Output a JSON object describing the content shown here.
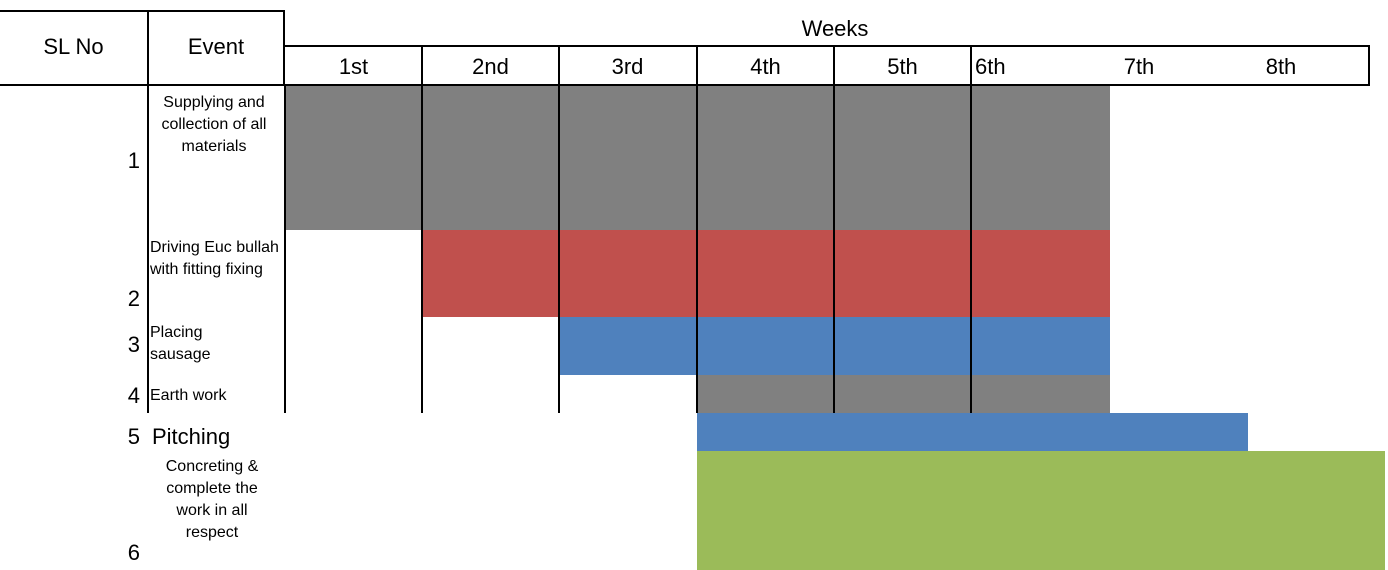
{
  "header": {
    "sl_no": "SL No",
    "event": "Event",
    "weeks": "Weeks",
    "week_labels": [
      "1st",
      "2nd",
      "3rd",
      "4th",
      "5th",
      "6th",
      "7th",
      "8th"
    ]
  },
  "rows": [
    {
      "sl": "1",
      "event": "Supplying and collection of all materials",
      "start_week": 1,
      "end_week": 6,
      "color": "#808080"
    },
    {
      "sl": "2",
      "event": "Driving Euc bullah  with fitting fixing",
      "start_week": 2,
      "end_week": 6,
      "color": "#c0504d"
    },
    {
      "sl": "3",
      "event": "Placing sausage",
      "start_week": 3,
      "end_week": 6,
      "color": "#4f81bd"
    },
    {
      "sl": "4",
      "event": "Earth work",
      "start_week": 4,
      "end_week": 6,
      "color": "#808080"
    },
    {
      "sl": "5",
      "event": "Pitching",
      "start_week": 4,
      "end_week": 7,
      "color": "#4f81bd"
    },
    {
      "sl": "6",
      "event": "Concreting & complete the work in all respect",
      "start_week": 4,
      "end_week": 8,
      "color": "#9bbb59"
    }
  ]
}
